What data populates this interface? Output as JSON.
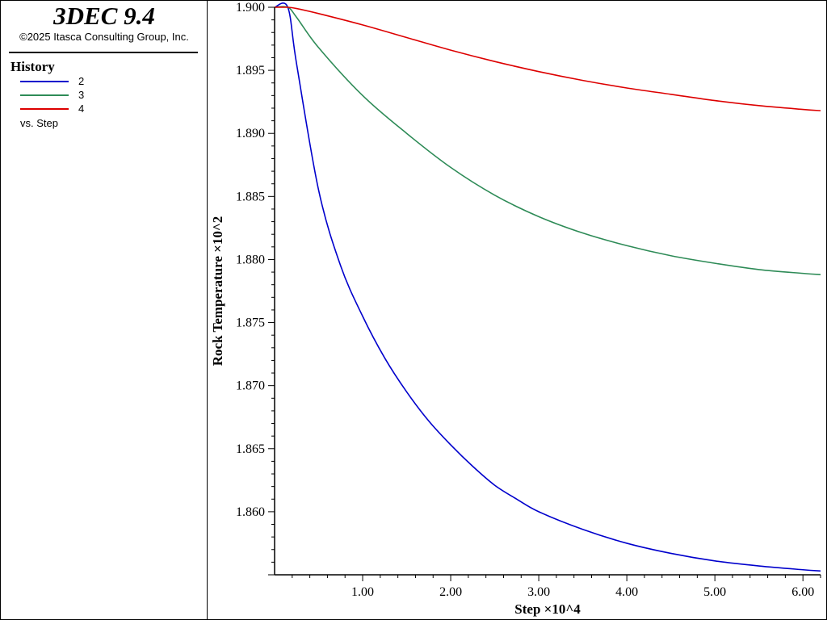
{
  "app": {
    "title": "3DEC 9.4",
    "copyright": "©2025 Itasca Consulting Group, Inc."
  },
  "legend": {
    "heading": "History",
    "items": [
      {
        "label": "2",
        "color": "#0000cc"
      },
      {
        "label": "3",
        "color": "#2e8b57"
      },
      {
        "label": "4",
        "color": "#dd0000"
      }
    ],
    "vs_label": "vs. Step"
  },
  "chart_data": {
    "type": "line",
    "xlabel": "Step ×10^4",
    "ylabel": "Rock Temperature ×10^2",
    "xlim": [
      0.0,
      6.2
    ],
    "ylim": [
      1.855,
      1.9
    ],
    "x_ticks": [
      "1.00",
      "2.00",
      "3.00",
      "4.00",
      "5.00",
      "6.00"
    ],
    "y_ticks": [
      "1.860",
      "1.865",
      "1.870",
      "1.875",
      "1.880",
      "1.885",
      "1.890",
      "1.895",
      "1.900"
    ],
    "grid": false,
    "series": [
      {
        "name": "2",
        "color": "#0000cc",
        "x": [
          0.0,
          0.15,
          0.25,
          0.5,
          0.75,
          1.0,
          1.25,
          1.5,
          1.75,
          2.0,
          2.25,
          2.5,
          2.75,
          3.0,
          3.5,
          4.0,
          4.5,
          5.0,
          5.5,
          6.0,
          6.2
        ],
        "y": [
          1.9,
          1.9,
          1.8955,
          1.8855,
          1.8795,
          1.8755,
          1.8722,
          1.8695,
          1.8672,
          1.8653,
          1.8636,
          1.8621,
          1.861,
          1.86,
          1.8586,
          1.8575,
          1.8567,
          1.8561,
          1.8557,
          1.8554,
          1.8553
        ]
      },
      {
        "name": "3",
        "color": "#2e8b57",
        "x": [
          0.0,
          0.15,
          0.25,
          0.5,
          1.0,
          1.5,
          2.0,
          2.5,
          3.0,
          3.5,
          4.0,
          4.5,
          5.0,
          5.5,
          6.0,
          6.2
        ],
        "y": [
          1.9,
          1.9,
          1.8992,
          1.8968,
          1.893,
          1.89,
          1.8873,
          1.8851,
          1.8834,
          1.8821,
          1.8811,
          1.8803,
          1.8797,
          1.8792,
          1.8789,
          1.8788
        ]
      },
      {
        "name": "4",
        "color": "#dd0000",
        "x": [
          0.0,
          0.15,
          0.25,
          0.5,
          1.0,
          1.5,
          2.0,
          2.5,
          3.0,
          3.5,
          4.0,
          4.5,
          5.0,
          5.5,
          6.0,
          6.2
        ],
        "y": [
          1.9,
          1.9,
          1.8999,
          1.8995,
          1.8986,
          1.8976,
          1.8966,
          1.8957,
          1.8949,
          1.8942,
          1.8936,
          1.8931,
          1.8926,
          1.8922,
          1.8919,
          1.8918
        ]
      }
    ]
  }
}
